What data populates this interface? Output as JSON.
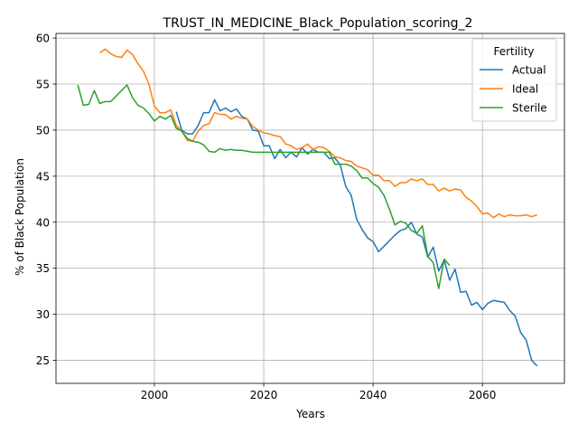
{
  "chart_data": {
    "type": "line",
    "title": "TRUST_IN_MEDICINE_Black_Population_scoring_2",
    "xlabel": "Years",
    "ylabel": "% of Black Population",
    "xlim": [
      1982,
      2075
    ],
    "ylim": [
      22.5,
      60.5
    ],
    "x_ticks": [
      2000,
      2020,
      2040,
      2060
    ],
    "y_ticks": [
      25,
      30,
      35,
      40,
      45,
      50,
      55,
      60
    ],
    "grid": true,
    "legend": {
      "title": "Fertility",
      "placement": "top-right"
    },
    "series": [
      {
        "name": "Actual",
        "color": "#1f77b4",
        "x": [
          2004,
          2005,
          2006,
          2007,
          2008,
          2009,
          2010,
          2011,
          2012,
          2013,
          2014,
          2015,
          2016,
          2017,
          2018,
          2019,
          2020,
          2021,
          2022,
          2023,
          2024,
          2025,
          2026,
          2027,
          2028,
          2029,
          2030,
          2031,
          2032,
          2033,
          2034,
          2035,
          2036,
          2037,
          2038,
          2039,
          2040,
          2041,
          2042,
          2043,
          2044,
          2045,
          2046,
          2047,
          2048,
          2049,
          2050,
          2051,
          2052,
          2053,
          2054,
          2055,
          2056,
          2057,
          2058,
          2059,
          2060,
          2061,
          2062,
          2063,
          2064,
          2065,
          2066,
          2067,
          2068,
          2069,
          2070
        ],
        "y": [
          52.0,
          50.0,
          49.6,
          49.6,
          50.5,
          51.9,
          51.9,
          53.3,
          52.1,
          52.4,
          52.0,
          52.3,
          51.5,
          51.2,
          50.0,
          49.9,
          48.3,
          48.3,
          46.9,
          47.9,
          47.0,
          47.6,
          47.1,
          48.1,
          47.4,
          47.9,
          47.6,
          47.6,
          46.9,
          47.0,
          46.2,
          43.9,
          42.9,
          40.3,
          39.2,
          38.3,
          37.9,
          36.8,
          37.4,
          38.0,
          38.6,
          39.1,
          39.3,
          40.0,
          38.7,
          38.4,
          36.2,
          37.3,
          34.7,
          35.9,
          33.7,
          34.9,
          32.4,
          32.5,
          31.0,
          31.3,
          30.5,
          31.2,
          31.5,
          31.4,
          31.3,
          30.4,
          29.8,
          28.0,
          27.2,
          25.0,
          24.4
        ]
      },
      {
        "name": "Ideal",
        "color": "#ff7f0e",
        "x": [
          1990,
          1991,
          1992,
          1993,
          1994,
          1995,
          1996,
          1997,
          1998,
          1999,
          2000,
          2001,
          2002,
          2003,
          2004,
          2005,
          2006,
          2007,
          2008,
          2009,
          2010,
          2011,
          2012,
          2013,
          2014,
          2015,
          2016,
          2017,
          2018,
          2019,
          2020,
          2021,
          2022,
          2023,
          2024,
          2025,
          2026,
          2027,
          2028,
          2029,
          2030,
          2031,
          2032,
          2033,
          2034,
          2035,
          2036,
          2037,
          2038,
          2039,
          2040,
          2041,
          2042,
          2043,
          2044,
          2045,
          2046,
          2047,
          2048,
          2049,
          2050,
          2051,
          2052,
          2053,
          2054,
          2055,
          2056,
          2057,
          2058,
          2059,
          2060,
          2061,
          2062,
          2063,
          2064,
          2065,
          2066,
          2067,
          2068,
          2069,
          2070
        ],
        "y": [
          58.4,
          58.8,
          58.3,
          58.0,
          57.9,
          58.7,
          58.2,
          57.2,
          56.4,
          55.0,
          52.6,
          51.9,
          51.9,
          52.2,
          50.5,
          49.9,
          48.9,
          48.8,
          49.9,
          50.5,
          50.7,
          51.9,
          51.7,
          51.7,
          51.2,
          51.5,
          51.3,
          51.2,
          50.4,
          50.0,
          49.7,
          49.6,
          49.4,
          49.3,
          48.5,
          48.3,
          47.9,
          48.1,
          48.5,
          47.9,
          48.2,
          48.1,
          47.7,
          47.1,
          47.0,
          46.7,
          46.6,
          46.1,
          45.9,
          45.7,
          45.1,
          45.1,
          44.5,
          44.5,
          43.9,
          44.3,
          44.3,
          44.7,
          44.5,
          44.7,
          44.1,
          44.1,
          43.4,
          43.7,
          43.4,
          43.6,
          43.5,
          42.7,
          42.3,
          41.7,
          40.9,
          41.0,
          40.5,
          40.9,
          40.6,
          40.8,
          40.7,
          40.7,
          40.8,
          40.6,
          40.8
        ]
      },
      {
        "name": "Sterile",
        "color": "#2ca02c",
        "x": [
          1986,
          1987,
          1988,
          1989,
          1990,
          1991,
          1992,
          1993,
          1994,
          1995,
          1996,
          1997,
          1998,
          1999,
          2000,
          2001,
          2002,
          2003,
          2004,
          2005,
          2006,
          2007,
          2008,
          2009,
          2010,
          2011,
          2012,
          2013,
          2014,
          2015,
          2016,
          2017,
          2018,
          2019,
          2020,
          2021,
          2022,
          2023,
          2024,
          2025,
          2026,
          2027,
          2028,
          2029,
          2030,
          2031,
          2032,
          2033,
          2034,
          2035,
          2036,
          2037,
          2038,
          2039,
          2040,
          2041,
          2042,
          2043,
          2044,
          2045,
          2046,
          2047,
          2048,
          2049,
          2050,
          2051,
          2052,
          2053,
          2054
        ],
        "y": [
          54.9,
          52.7,
          52.8,
          54.3,
          52.9,
          53.1,
          53.1,
          53.7,
          54.3,
          54.9,
          53.5,
          52.7,
          52.4,
          51.8,
          51.0,
          51.5,
          51.2,
          51.6,
          50.2,
          49.9,
          49.1,
          48.8,
          48.7,
          48.4,
          47.7,
          47.6,
          48.0,
          47.8,
          47.9,
          47.8,
          47.8,
          47.7,
          47.6,
          47.6,
          47.6,
          47.6,
          47.6,
          47.6,
          47.6,
          47.6,
          47.6,
          47.6,
          47.6,
          47.6,
          47.6,
          47.6,
          47.6,
          46.3,
          46.3,
          46.3,
          46.1,
          45.6,
          44.8,
          44.8,
          44.2,
          43.8,
          42.9,
          41.4,
          39.7,
          40.1,
          39.9,
          39.1,
          38.8,
          39.6,
          36.3,
          35.6,
          32.8,
          36.0,
          35.3
        ]
      }
    ]
  }
}
